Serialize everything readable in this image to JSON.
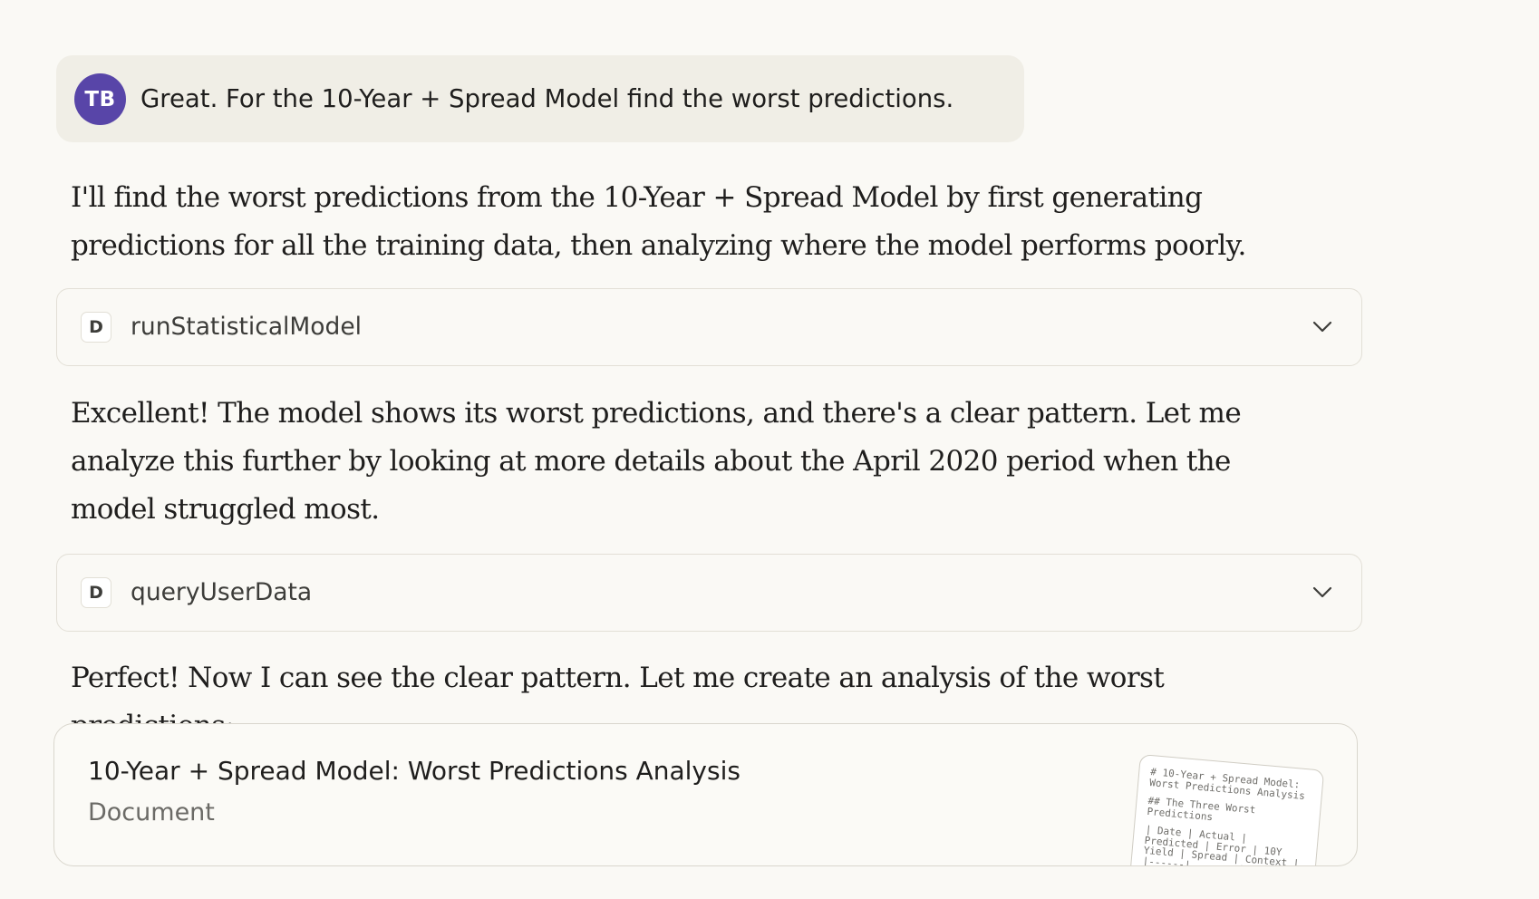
{
  "user_message": {
    "avatar_initials": "TB",
    "text": "Great. For the 10-Year + Spread Model find the worst predictions."
  },
  "assistant": {
    "para1": "I'll find the worst predictions from the 10-Year + Spread Model by first generating predictions for all the training data, then analyzing where the model performs poorly.",
    "tool1": {
      "badge": "D",
      "name": "runStatisticalModel",
      "icon": "chevron-down-icon"
    },
    "para2": "Excellent! The model shows its worst predictions, and there's a clear pattern. Let me analyze this further by looking at more details about the April 2020 period when the model struggled most.",
    "tool2": {
      "badge": "D",
      "name": "queryUserData",
      "icon": "chevron-down-icon"
    },
    "para3": "Perfect! Now I can see the clear pattern. Let me create an analysis of the worst predictions:",
    "artifact": {
      "title": "10-Year + Spread Model: Worst Predictions Analysis",
      "type": "Document",
      "preview": {
        "line1": "# 10-Year + Spread Model: Worst Predictions Analysis",
        "line2": "## The Three Worst Predictions",
        "line3": "| Date | Actual | Predicted | Error | 10Y Yield | Spread | Context |",
        "line4": "|------|--------|"
      }
    }
  },
  "colors": {
    "background": "#faf9f5",
    "user_bubble": "#f0eee6",
    "avatar": "#5845a8",
    "text": "#1f1e1d",
    "border": "#e2dfd6"
  }
}
